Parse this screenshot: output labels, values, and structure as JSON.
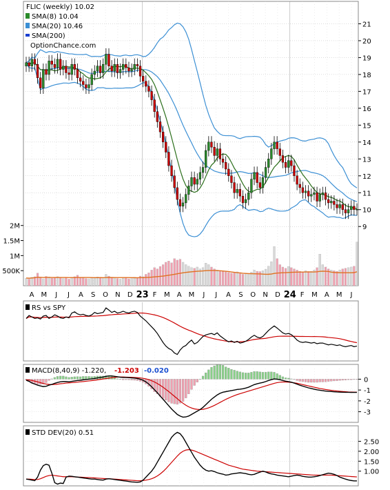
{
  "legend": {
    "title": "FLIC (weekly) 10.02",
    "sma8": "SMA(8) 10.04",
    "sma20": "SMA(20) 10.46",
    "sma200": "SMA(200)",
    "watermark": "OptionChance.com"
  },
  "colors": {
    "up": "#2a8a2a",
    "down": "#cc0000",
    "bb": "#3b8fd4",
    "sma8": "#2a6e1a",
    "volMA": "#e07020",
    "volUp": "#d8d8d8",
    "volDown": "#f0a0b0",
    "rs": "#000000",
    "rsMA": "#cc0000",
    "grid": "#b8b8b8"
  },
  "x_labels": [
    "A",
    "M",
    "J",
    "J",
    "A",
    "S",
    "O",
    "N",
    "D",
    "23",
    "F",
    "M",
    "A",
    "M",
    "J",
    "J",
    "A",
    "S",
    "O",
    "N",
    "D",
    "24",
    "F",
    "M",
    "A",
    "M",
    "J"
  ],
  "rs_panel": {
    "label": "RS vs SPY"
  },
  "macd_panel": {
    "label": "MACD(8,40,9) -1.220,",
    "v1": "-1.203",
    "v2": "-0.020",
    "ticks": [
      "0",
      "-1",
      "-2",
      "-3"
    ]
  },
  "std_panel": {
    "label": "STD DEV(20) 0.51",
    "ticks": [
      "2.50",
      "2.00",
      "1.50",
      "1.00"
    ]
  },
  "chart_data": {
    "type": "candlestick",
    "price_axis": {
      "ticks": [
        9,
        10,
        11,
        12,
        13,
        14,
        15,
        16,
        17,
        18,
        19,
        20,
        21
      ],
      "ylim": [
        8.6,
        22
      ]
    },
    "volume_axis": {
      "ticks": [
        "500K",
        "1M",
        "1.5M",
        "2M"
      ],
      "ylim": [
        0,
        2200000
      ]
    },
    "closes": [
      18.7,
      18.5,
      18.9,
      18.6,
      17.8,
      17.2,
      18.3,
      18.0,
      18.8,
      18.6,
      18.4,
      18.9,
      18.3,
      18.5,
      18.1,
      18.0,
      18.6,
      18.3,
      17.8,
      17.6,
      17.4,
      17.2,
      17.4,
      18.0,
      18.2,
      18.5,
      18.1,
      18.6,
      19.2,
      18.5,
      18.2,
      18.6,
      18.1,
      18.3,
      18.6,
      18.4,
      18.2,
      18.3,
      18.6,
      18.5,
      17.9,
      17.6,
      17.3,
      17.0,
      16.5,
      15.8,
      15.2,
      14.6,
      14.0,
      13.4,
      12.6,
      12.0,
      11.3,
      10.6,
      10.2,
      10.4,
      10.9,
      11.4,
      11.9,
      11.5,
      11.8,
      12.2,
      12.5,
      13.5,
      14.0,
      13.7,
      13.2,
      13.6,
      13.0,
      12.8,
      12.4,
      12.0,
      11.6,
      11.0,
      11.2,
      10.8,
      10.4,
      10.6,
      11.0,
      11.8,
      12.2,
      11.6,
      11.3,
      11.9,
      12.5,
      13.0,
      13.6,
      14.0,
      13.6,
      13.2,
      12.8,
      12.5,
      12.9,
      12.6,
      12.0,
      11.5,
      11.3,
      11.0,
      11.1,
      10.8,
      10.9,
      11.0,
      10.5,
      10.9,
      11.0,
      10.6,
      10.4,
      10.5,
      10.3,
      10.1,
      10.3,
      10.0,
      9.8,
      10.0,
      10.2,
      10.0,
      10.02
    ],
    "volumes": [
      250000,
      220000,
      280000,
      300000,
      420000,
      260000,
      230000,
      310000,
      290000,
      250000,
      270000,
      300000,
      260000,
      240000,
      280000,
      220000,
      260000,
      300000,
      350000,
      280000,
      260000,
      240000,
      230000,
      260000,
      280000,
      290000,
      250000,
      270000,
      380000,
      320000,
      260000,
      280000,
      240000,
      220000,
      250000,
      260000,
      230000,
      240000,
      280000,
      250000,
      320000,
      300000,
      380000,
      430000,
      520000,
      600000,
      560000,
      640000,
      700000,
      780000,
      820000,
      760000,
      900000,
      850000,
      880000,
      780000,
      700000,
      650000,
      600000,
      580000,
      620000,
      560000,
      600000,
      750000,
      700000,
      620000,
      560000,
      520000,
      480000,
      500000,
      460000,
      440000,
      420000,
      430000,
      460000,
      400000,
      380000,
      420000,
      400000,
      450000,
      520000,
      480000,
      470000,
      500000,
      550000,
      650000,
      800000,
      1300000,
      900000,
      700000,
      620000,
      580000,
      640000,
      600000,
      560000,
      520000,
      480000,
      460000,
      500000,
      470000,
      480000,
      520000,
      600000,
      1050000,
      700000,
      620000,
      560000,
      520000,
      500000,
      480000,
      520000,
      560000,
      580000,
      600000,
      620000,
      650000,
      1450000
    ],
    "rs": [
      0.1,
      0.2,
      0.15,
      0.1,
      0.12,
      0.08,
      0.18,
      0.2,
      0.1,
      0.15,
      0.22,
      0.18,
      0.12,
      0.1,
      0.15,
      0.12,
      0.28,
      0.32,
      0.25,
      0.22,
      0.24,
      0.2,
      0.18,
      0.22,
      0.3,
      0.26,
      0.28,
      0.3,
      0.45,
      0.38,
      0.3,
      0.34,
      0.28,
      0.3,
      0.34,
      0.3,
      0.28,
      0.32,
      0.34,
      0.3,
      0.18,
      0.1,
      0.02,
      -0.08,
      -0.18,
      -0.28,
      -0.4,
      -0.55,
      -0.7,
      -0.82,
      -0.9,
      -0.95,
      -1.05,
      -1.1,
      -0.95,
      -0.85,
      -0.8,
      -0.7,
      -0.62,
      -0.75,
      -0.7,
      -0.6,
      -0.5,
      -0.45,
      -0.42,
      -0.4,
      -0.44,
      -0.38,
      -0.48,
      -0.55,
      -0.62,
      -0.68,
      -0.65,
      -0.7,
      -0.66,
      -0.72,
      -0.7,
      -0.66,
      -0.6,
      -0.52,
      -0.46,
      -0.52,
      -0.55,
      -0.5,
      -0.4,
      -0.3,
      -0.22,
      -0.15,
      -0.22,
      -0.3,
      -0.38,
      -0.42,
      -0.4,
      -0.44,
      -0.52,
      -0.62,
      -0.68,
      -0.7,
      -0.68,
      -0.7,
      -0.72,
      -0.7,
      -0.74,
      -0.72,
      -0.72,
      -0.75,
      -0.78,
      -0.76,
      -0.78,
      -0.8,
      -0.78,
      -0.82,
      -0.84,
      -0.82,
      -0.8,
      -0.84,
      -0.82
    ],
    "macd": [
      -0.1,
      -0.2,
      -0.35,
      -0.45,
      -0.55,
      -0.62,
      -0.68,
      -0.65,
      -0.55,
      -0.48,
      -0.38,
      -0.3,
      -0.24,
      -0.22,
      -0.22,
      -0.24,
      -0.2,
      -0.16,
      -0.12,
      -0.1,
      -0.06,
      -0.03,
      0.0,
      0.02,
      0.06,
      0.12,
      0.16,
      0.2,
      0.26,
      0.3,
      0.3,
      0.26,
      0.22,
      0.18,
      0.16,
      0.16,
      0.14,
      0.12,
      0.1,
      0.06,
      0.0,
      -0.1,
      -0.25,
      -0.45,
      -0.7,
      -0.98,
      -1.25,
      -1.55,
      -1.85,
      -2.15,
      -2.45,
      -2.75,
      -3.0,
      -3.25,
      -3.4,
      -3.5,
      -3.48,
      -3.4,
      -3.25,
      -3.1,
      -2.95,
      -2.8,
      -2.6,
      -2.35,
      -2.1,
      -1.85,
      -1.65,
      -1.45,
      -1.3,
      -1.2,
      -1.15,
      -1.1,
      -1.05,
      -1.0,
      -0.95,
      -0.92,
      -0.88,
      -0.82,
      -0.74,
      -0.62,
      -0.5,
      -0.42,
      -0.36,
      -0.3,
      -0.22,
      -0.12,
      -0.04,
      0.02,
      0.0,
      -0.05,
      -0.12,
      -0.18,
      -0.22,
      -0.28,
      -0.36,
      -0.46,
      -0.56,
      -0.64,
      -0.72,
      -0.8,
      -0.86,
      -0.92,
      -0.98,
      -1.02,
      -1.06,
      -1.1,
      -1.12,
      -1.14,
      -1.16,
      -1.18,
      -1.19,
      -1.2,
      -1.21,
      -1.21,
      -1.22,
      -1.22,
      -1.22
    ],
    "macd_signal": [
      -0.05,
      -0.08,
      -0.12,
      -0.18,
      -0.25,
      -0.32,
      -0.4,
      -0.45,
      -0.48,
      -0.5,
      -0.48,
      -0.46,
      -0.42,
      -0.4,
      -0.36,
      -0.34,
      -0.32,
      -0.3,
      -0.27,
      -0.24,
      -0.22,
      -0.19,
      -0.16,
      -0.13,
      -0.1,
      -0.06,
      -0.02,
      0.02,
      0.06,
      0.1,
      0.14,
      0.17,
      0.19,
      0.2,
      0.2,
      0.19,
      0.18,
      0.17,
      0.16,
      0.14,
      0.12,
      0.08,
      0.03,
      -0.04,
      -0.14,
      -0.26,
      -0.4,
      -0.56,
      -0.74,
      -0.94,
      -1.14,
      -1.36,
      -1.58,
      -1.8,
      -2.02,
      -2.22,
      -2.4,
      -2.55,
      -2.66,
      -2.74,
      -2.78,
      -2.8,
      -2.78,
      -2.72,
      -2.64,
      -2.54,
      -2.42,
      -2.28,
      -2.14,
      -2.0,
      -1.86,
      -1.74,
      -1.62,
      -1.52,
      -1.42,
      -1.34,
      -1.26,
      -1.18,
      -1.1,
      -1.02,
      -0.94,
      -0.86,
      -0.78,
      -0.7,
      -0.62,
      -0.54,
      -0.46,
      -0.38,
      -0.32,
      -0.28,
      -0.26,
      -0.26,
      -0.28,
      -0.3,
      -0.34,
      -0.38,
      -0.44,
      -0.5,
      -0.56,
      -0.62,
      -0.68,
      -0.74,
      -0.8,
      -0.86,
      -0.9,
      -0.95,
      -0.99,
      -1.03,
      -1.06,
      -1.09,
      -1.12,
      -1.14,
      -1.16,
      -1.18,
      -1.19,
      -1.2,
      -1.2
    ],
    "std": [
      0.6,
      0.58,
      0.55,
      0.52,
      0.7,
      1.05,
      1.28,
      1.35,
      1.3,
      0.9,
      0.42,
      0.35,
      0.4,
      0.38,
      0.7,
      0.75,
      0.74,
      0.72,
      0.7,
      0.68,
      0.66,
      0.64,
      0.62,
      0.6,
      0.6,
      0.58,
      0.56,
      0.55,
      0.6,
      0.62,
      0.6,
      0.58,
      0.56,
      0.54,
      0.52,
      0.5,
      0.48,
      0.46,
      0.45,
      0.44,
      0.46,
      0.55,
      0.7,
      0.85,
      1.0,
      1.2,
      1.45,
      1.7,
      1.95,
      2.2,
      2.45,
      2.7,
      2.85,
      2.95,
      2.88,
      2.7,
      2.45,
      2.2,
      1.95,
      1.7,
      1.5,
      1.3,
      1.15,
      1.05,
      1.0,
      1.02,
      0.98,
      0.92,
      0.88,
      0.85,
      0.8,
      0.82,
      0.86,
      0.88,
      0.9,
      0.92,
      0.9,
      0.88,
      0.84,
      0.82,
      0.84,
      0.9,
      0.95,
      1.0,
      0.96,
      0.9,
      0.86,
      0.84,
      0.8,
      0.78,
      0.76,
      0.74,
      0.72,
      0.75,
      0.78,
      0.8,
      0.78,
      0.74,
      0.72,
      0.7,
      0.7,
      0.72,
      0.74,
      0.78,
      0.82,
      0.86,
      0.9,
      0.88,
      0.84,
      0.78,
      0.7,
      0.65,
      0.6,
      0.56,
      0.53,
      0.51,
      0.51
    ],
    "std_ma": [
      0.6,
      0.6,
      0.59,
      0.58,
      0.58,
      0.62,
      0.68,
      0.74,
      0.78,
      0.8,
      0.78,
      0.76,
      0.74,
      0.72,
      0.72,
      0.72,
      0.72,
      0.71,
      0.7,
      0.7,
      0.69,
      0.68,
      0.68,
      0.67,
      0.66,
      0.65,
      0.64,
      0.63,
      0.62,
      0.62,
      0.61,
      0.6,
      0.59,
      0.58,
      0.57,
      0.56,
      0.55,
      0.54,
      0.53,
      0.52,
      0.52,
      0.53,
      0.55,
      0.58,
      0.62,
      0.68,
      0.76,
      0.86,
      0.98,
      1.12,
      1.28,
      1.44,
      1.6,
      1.76,
      1.9,
      2.0,
      2.06,
      2.08,
      2.06,
      2.02,
      1.96,
      1.9,
      1.84,
      1.78,
      1.72,
      1.66,
      1.6,
      1.54,
      1.48,
      1.42,
      1.36,
      1.3,
      1.26,
      1.22,
      1.18,
      1.14,
      1.1,
      1.08,
      1.06,
      1.04,
      1.02,
      1.0,
      0.99,
      0.98,
      0.97,
      0.96,
      0.95,
      0.94,
      0.93,
      0.92,
      0.91,
      0.9,
      0.89,
      0.88,
      0.87,
      0.86,
      0.85,
      0.84,
      0.83,
      0.82,
      0.81,
      0.8,
      0.8,
      0.8,
      0.8,
      0.8,
      0.8,
      0.8,
      0.79,
      0.78,
      0.77,
      0.76,
      0.75,
      0.74,
      0.73,
      0.72,
      0.71
    ]
  }
}
